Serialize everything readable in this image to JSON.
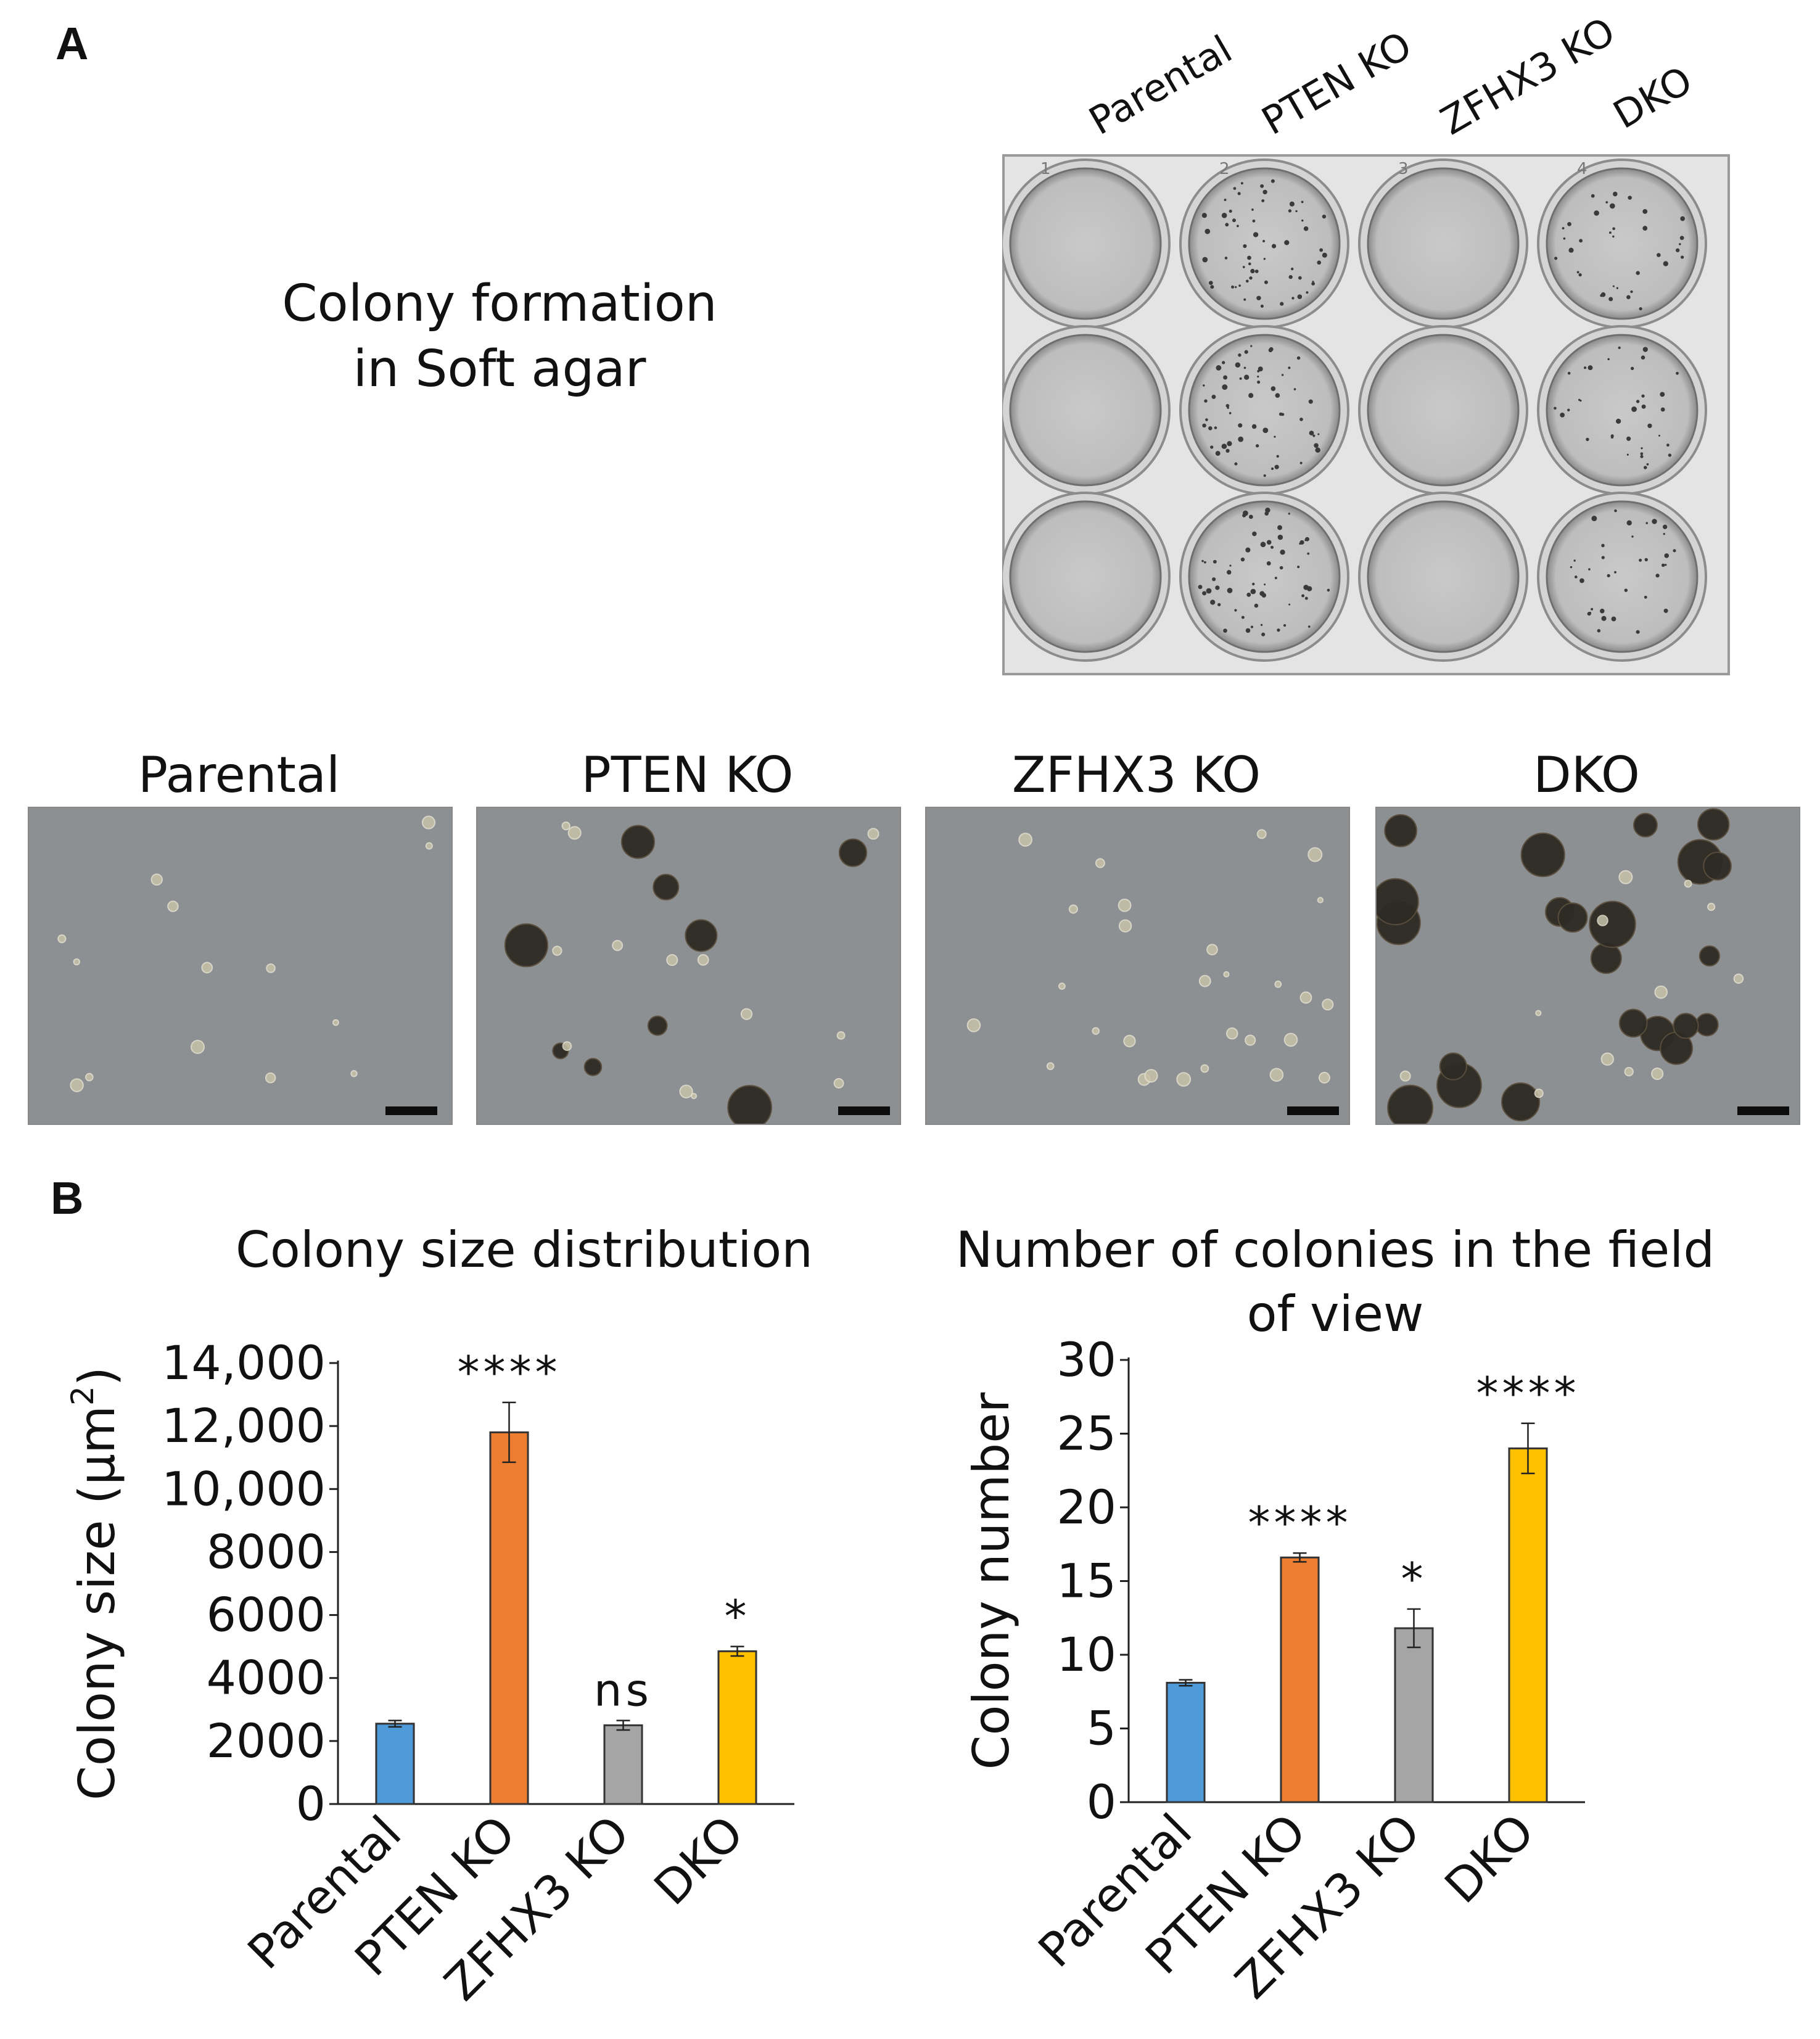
{
  "panel_labels": {
    "a": "A",
    "b": "B"
  },
  "soft_agar_caption": {
    "line1": "Colony formation",
    "line2": "in Soft agar"
  },
  "plate_labels": [
    "Parental",
    "PTEN KO",
    "ZFHX3 KO",
    "DKO"
  ],
  "plate_well_numbers": [
    "1",
    "2",
    "3",
    "4"
  ],
  "micrograph_titles": [
    "Parental",
    "PTEN KO",
    "ZFHX3 KO",
    "DKO"
  ],
  "colors": {
    "Parental": "#4f9ad9",
    "PTEN KO": "#ed7d31",
    "ZFHX3 KO": "#a5a5a5",
    "DKO": "#ffc000"
  },
  "chart_data": [
    {
      "type": "bar",
      "title": "Colony size distribution",
      "ylabel": "Colony size (µm²)",
      "ylabel_main": "Colony size (µm",
      "ylabel_sup": "2",
      "ylabel_close": ")",
      "categories": [
        "Parental",
        "PTEN KO",
        "ZFHX3 KO",
        "DKO"
      ],
      "values": [
        2550,
        11800,
        2500,
        4850
      ],
      "errors": [
        100,
        950,
        150,
        150
      ],
      "significance": [
        "",
        "****",
        "ns",
        "*"
      ],
      "ylim": [
        0,
        14000
      ],
      "yticks": [
        0,
        2000,
        4000,
        6000,
        8000,
        10000,
        12000,
        14000
      ],
      "ytick_labels": [
        "0",
        "2000",
        "4000",
        "6000",
        "8000",
        "10,000",
        "12,000",
        "14,000"
      ]
    },
    {
      "type": "bar",
      "title": "Number of colonies in the field of view",
      "title_line1": "Number of colonies in the field",
      "title_line2": "of view",
      "ylabel": "Colony number",
      "categories": [
        "Parental",
        "PTEN KO",
        "ZFHX3 KO",
        "DKO"
      ],
      "values": [
        8.1,
        16.6,
        11.8,
        24.0
      ],
      "errors": [
        0.2,
        0.3,
        1.3,
        1.7
      ],
      "significance": [
        "",
        "****",
        "*",
        "****"
      ],
      "ylim": [
        0,
        30
      ],
      "yticks": [
        0,
        5,
        10,
        15,
        20,
        25,
        30
      ],
      "ytick_labels": [
        "0",
        "5",
        "10",
        "15",
        "20",
        "25",
        "30"
      ]
    }
  ]
}
